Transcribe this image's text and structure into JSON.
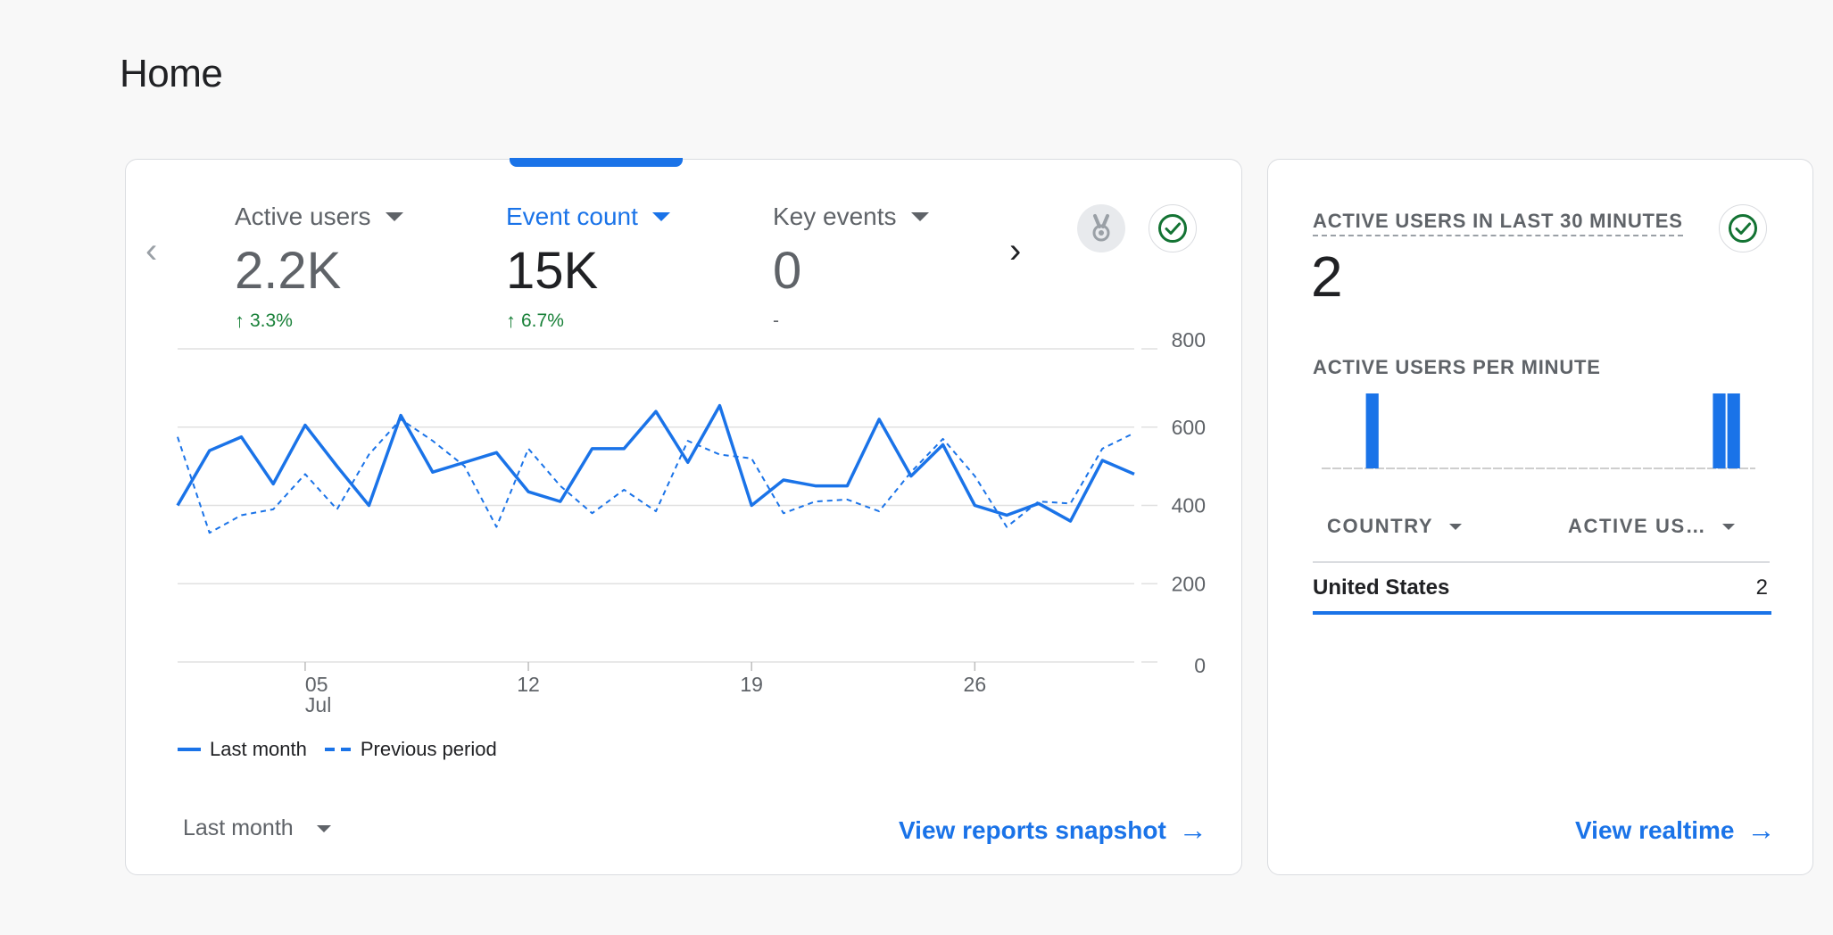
{
  "page": {
    "title": "Home"
  },
  "metrics": [
    {
      "label": "Active users",
      "value": "2.2K",
      "change": "3.3%",
      "direction": "up"
    },
    {
      "label": "Event count",
      "value": "15K",
      "change": "6.7%",
      "direction": "up",
      "active": true
    },
    {
      "label": "Key events",
      "value": "0",
      "change": "-",
      "direction": "none"
    }
  ],
  "icons": {
    "prev": "chevron-left-icon",
    "next": "chevron-right-icon",
    "medal": "medal-icon",
    "check": "check-circle-icon",
    "arrow": "arrow-right-icon",
    "caret": "caret-down-icon"
  },
  "colors": {
    "accent": "#1a73e8",
    "positive": "#188038",
    "check": "#137333",
    "muted": "#5f6368",
    "grid": "#e0e0e0"
  },
  "chart_data": {
    "type": "line",
    "x_ticks": [
      {
        "day": 5,
        "label": "05",
        "sublabel": "Jul"
      },
      {
        "day": 12,
        "label": "12"
      },
      {
        "day": 19,
        "label": "19"
      },
      {
        "day": 26,
        "label": "26"
      }
    ],
    "x_range": [
      1,
      31
    ],
    "y_ticks": [
      "0",
      "200",
      "400",
      "600",
      "800"
    ],
    "ylim": [
      0,
      800
    ],
    "series": [
      {
        "name": "Last month",
        "style": "solid",
        "values": [
          400,
          540,
          575,
          455,
          605,
          500,
          400,
          630,
          485,
          510,
          535,
          435,
          410,
          545,
          545,
          640,
          510,
          655,
          400,
          465,
          450,
          450,
          620,
          475,
          555,
          400,
          375,
          405,
          360,
          515,
          480
        ]
      },
      {
        "name": "Previous period",
        "style": "dashed",
        "values": [
          575,
          330,
          375,
          390,
          480,
          390,
          530,
          620,
          565,
          500,
          345,
          545,
          450,
          380,
          440,
          385,
          565,
          530,
          520,
          380,
          410,
          415,
          385,
          485,
          570,
          475,
          345,
          410,
          405,
          545,
          585
        ]
      }
    ]
  },
  "legend": {
    "current": "Last month",
    "previous": "Previous period"
  },
  "footer": {
    "period": "Last month",
    "link": "View reports snapshot"
  },
  "realtime": {
    "title": "ACTIVE USERS IN LAST 30 MINUTES",
    "value": "2",
    "subtitle": "ACTIVE USERS PER MINUTE",
    "per_minute": [
      0,
      0,
      0,
      1,
      0,
      0,
      0,
      0,
      0,
      0,
      0,
      0,
      0,
      0,
      0,
      0,
      0,
      0,
      0,
      0,
      0,
      0,
      0,
      0,
      0,
      0,
      0,
      1,
      1,
      0
    ],
    "columns": {
      "country": "COUNTRY",
      "users": "ACTIVE US…"
    },
    "rows": [
      {
        "country": "United States",
        "value": "2"
      }
    ],
    "link": "View realtime"
  }
}
